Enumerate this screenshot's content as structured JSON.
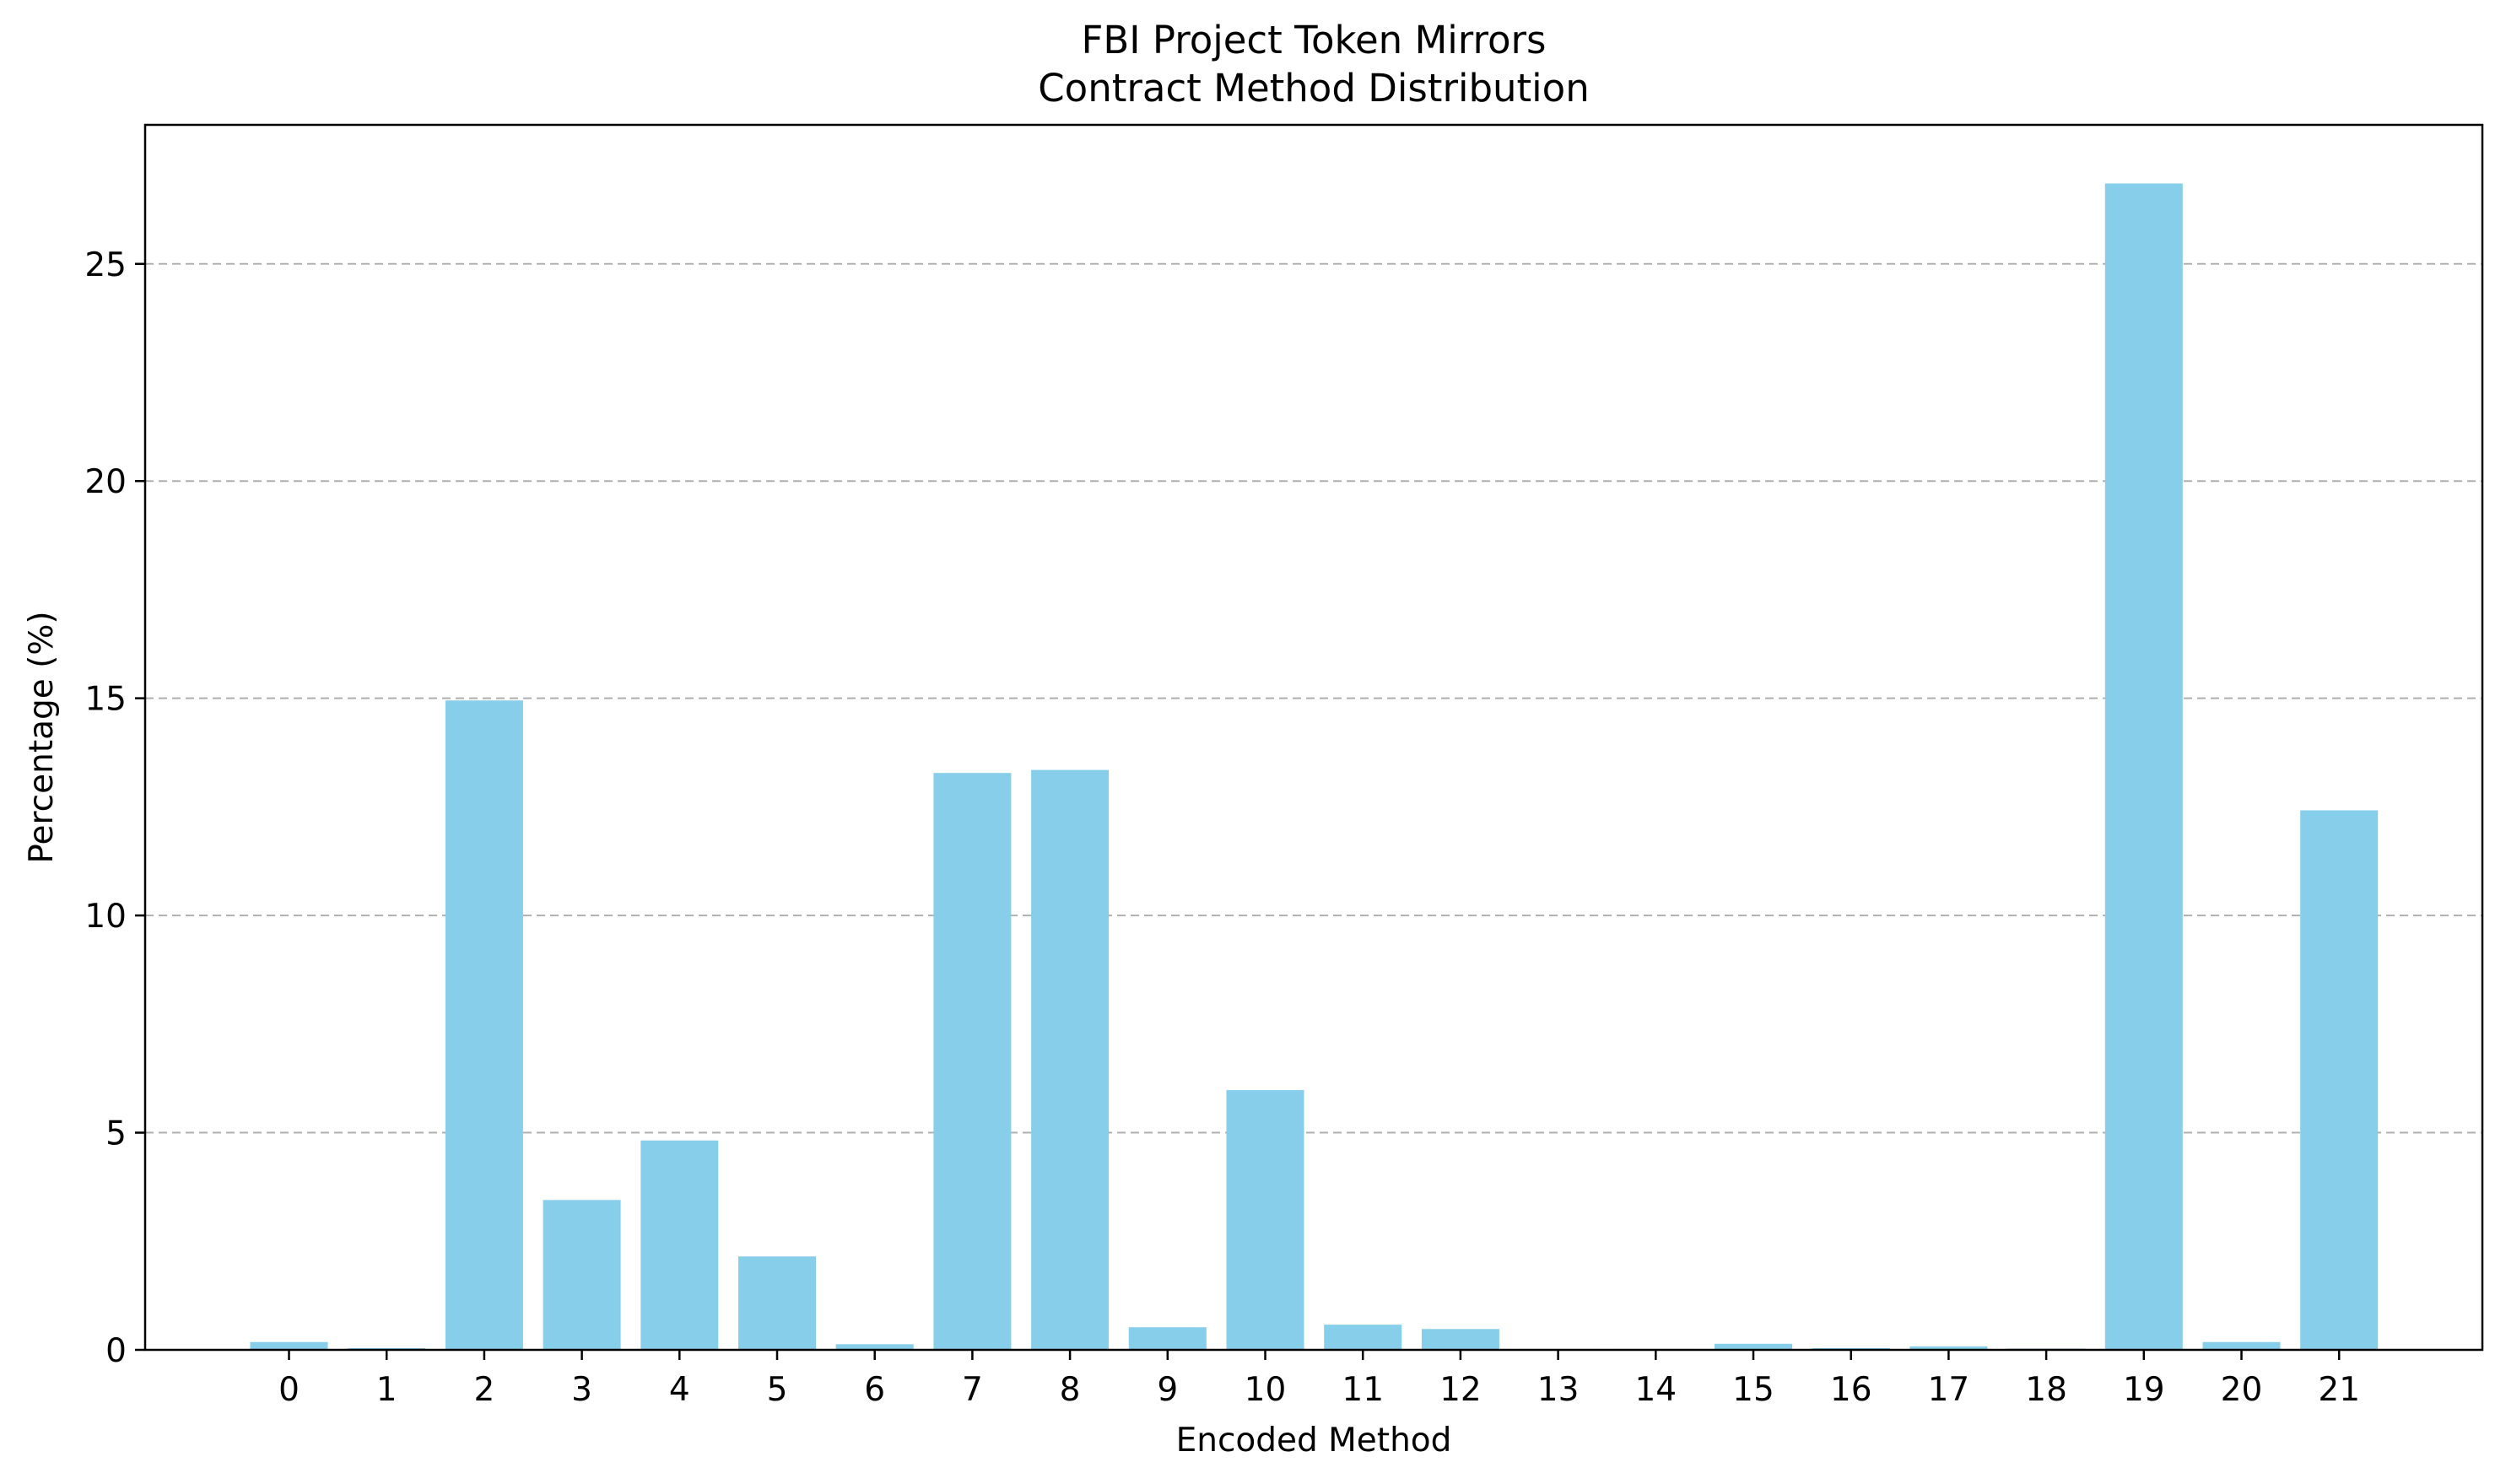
{
  "chart_data": {
    "type": "bar",
    "title_line1": "FBI Project Token Mirrors",
    "title_line2": "Contract Method Distribution",
    "xlabel": "Encoded Method",
    "ylabel": "Percentage (%)",
    "categories": [
      "0",
      "1",
      "2",
      "3",
      "4",
      "5",
      "6",
      "7",
      "8",
      "9",
      "10",
      "11",
      "12",
      "13",
      "14",
      "15",
      "16",
      "17",
      "18",
      "19",
      "20",
      "21"
    ],
    "values": [
      0.18,
      0.04,
      14.95,
      3.45,
      4.82,
      2.15,
      0.13,
      13.28,
      13.35,
      0.52,
      5.98,
      0.58,
      0.48,
      0.02,
      0.02,
      0.14,
      0.04,
      0.08,
      0.03,
      26.85,
      0.18,
      12.42
    ],
    "yticks": [
      0,
      5,
      10,
      15,
      20,
      25
    ],
    "ylim": [
      0,
      28.2
    ],
    "bar_color": "#87CEEB",
    "grid": "y-dashed"
  }
}
